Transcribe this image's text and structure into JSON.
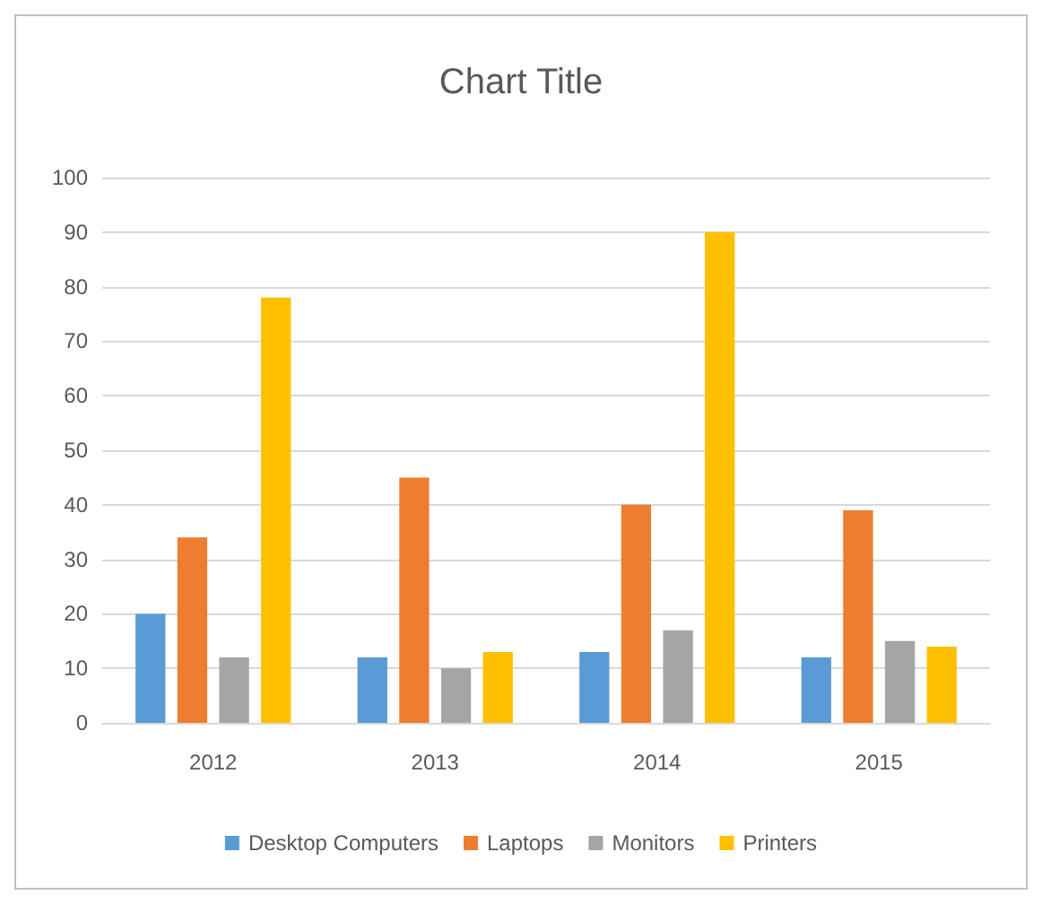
{
  "chart_data": {
    "type": "bar",
    "title": "Chart Title",
    "categories": [
      "2012",
      "2013",
      "2014",
      "2015"
    ],
    "series": [
      {
        "name": "Desktop Computers",
        "color": "#5b9bd5",
        "values": [
          20,
          12,
          13,
          12
        ]
      },
      {
        "name": "Laptops",
        "color": "#ed7d31",
        "values": [
          34,
          45,
          40,
          39
        ]
      },
      {
        "name": "Monitors",
        "color": "#a5a5a5",
        "values": [
          12,
          10,
          17,
          15
        ]
      },
      {
        "name": "Printers",
        "color": "#ffc000",
        "values": [
          78,
          13,
          90,
          14
        ]
      }
    ],
    "ylim": [
      0,
      100
    ],
    "yticks": [
      0,
      10,
      20,
      30,
      40,
      50,
      60,
      70,
      80,
      90,
      100
    ],
    "grid": "y",
    "legend": "bottom"
  }
}
